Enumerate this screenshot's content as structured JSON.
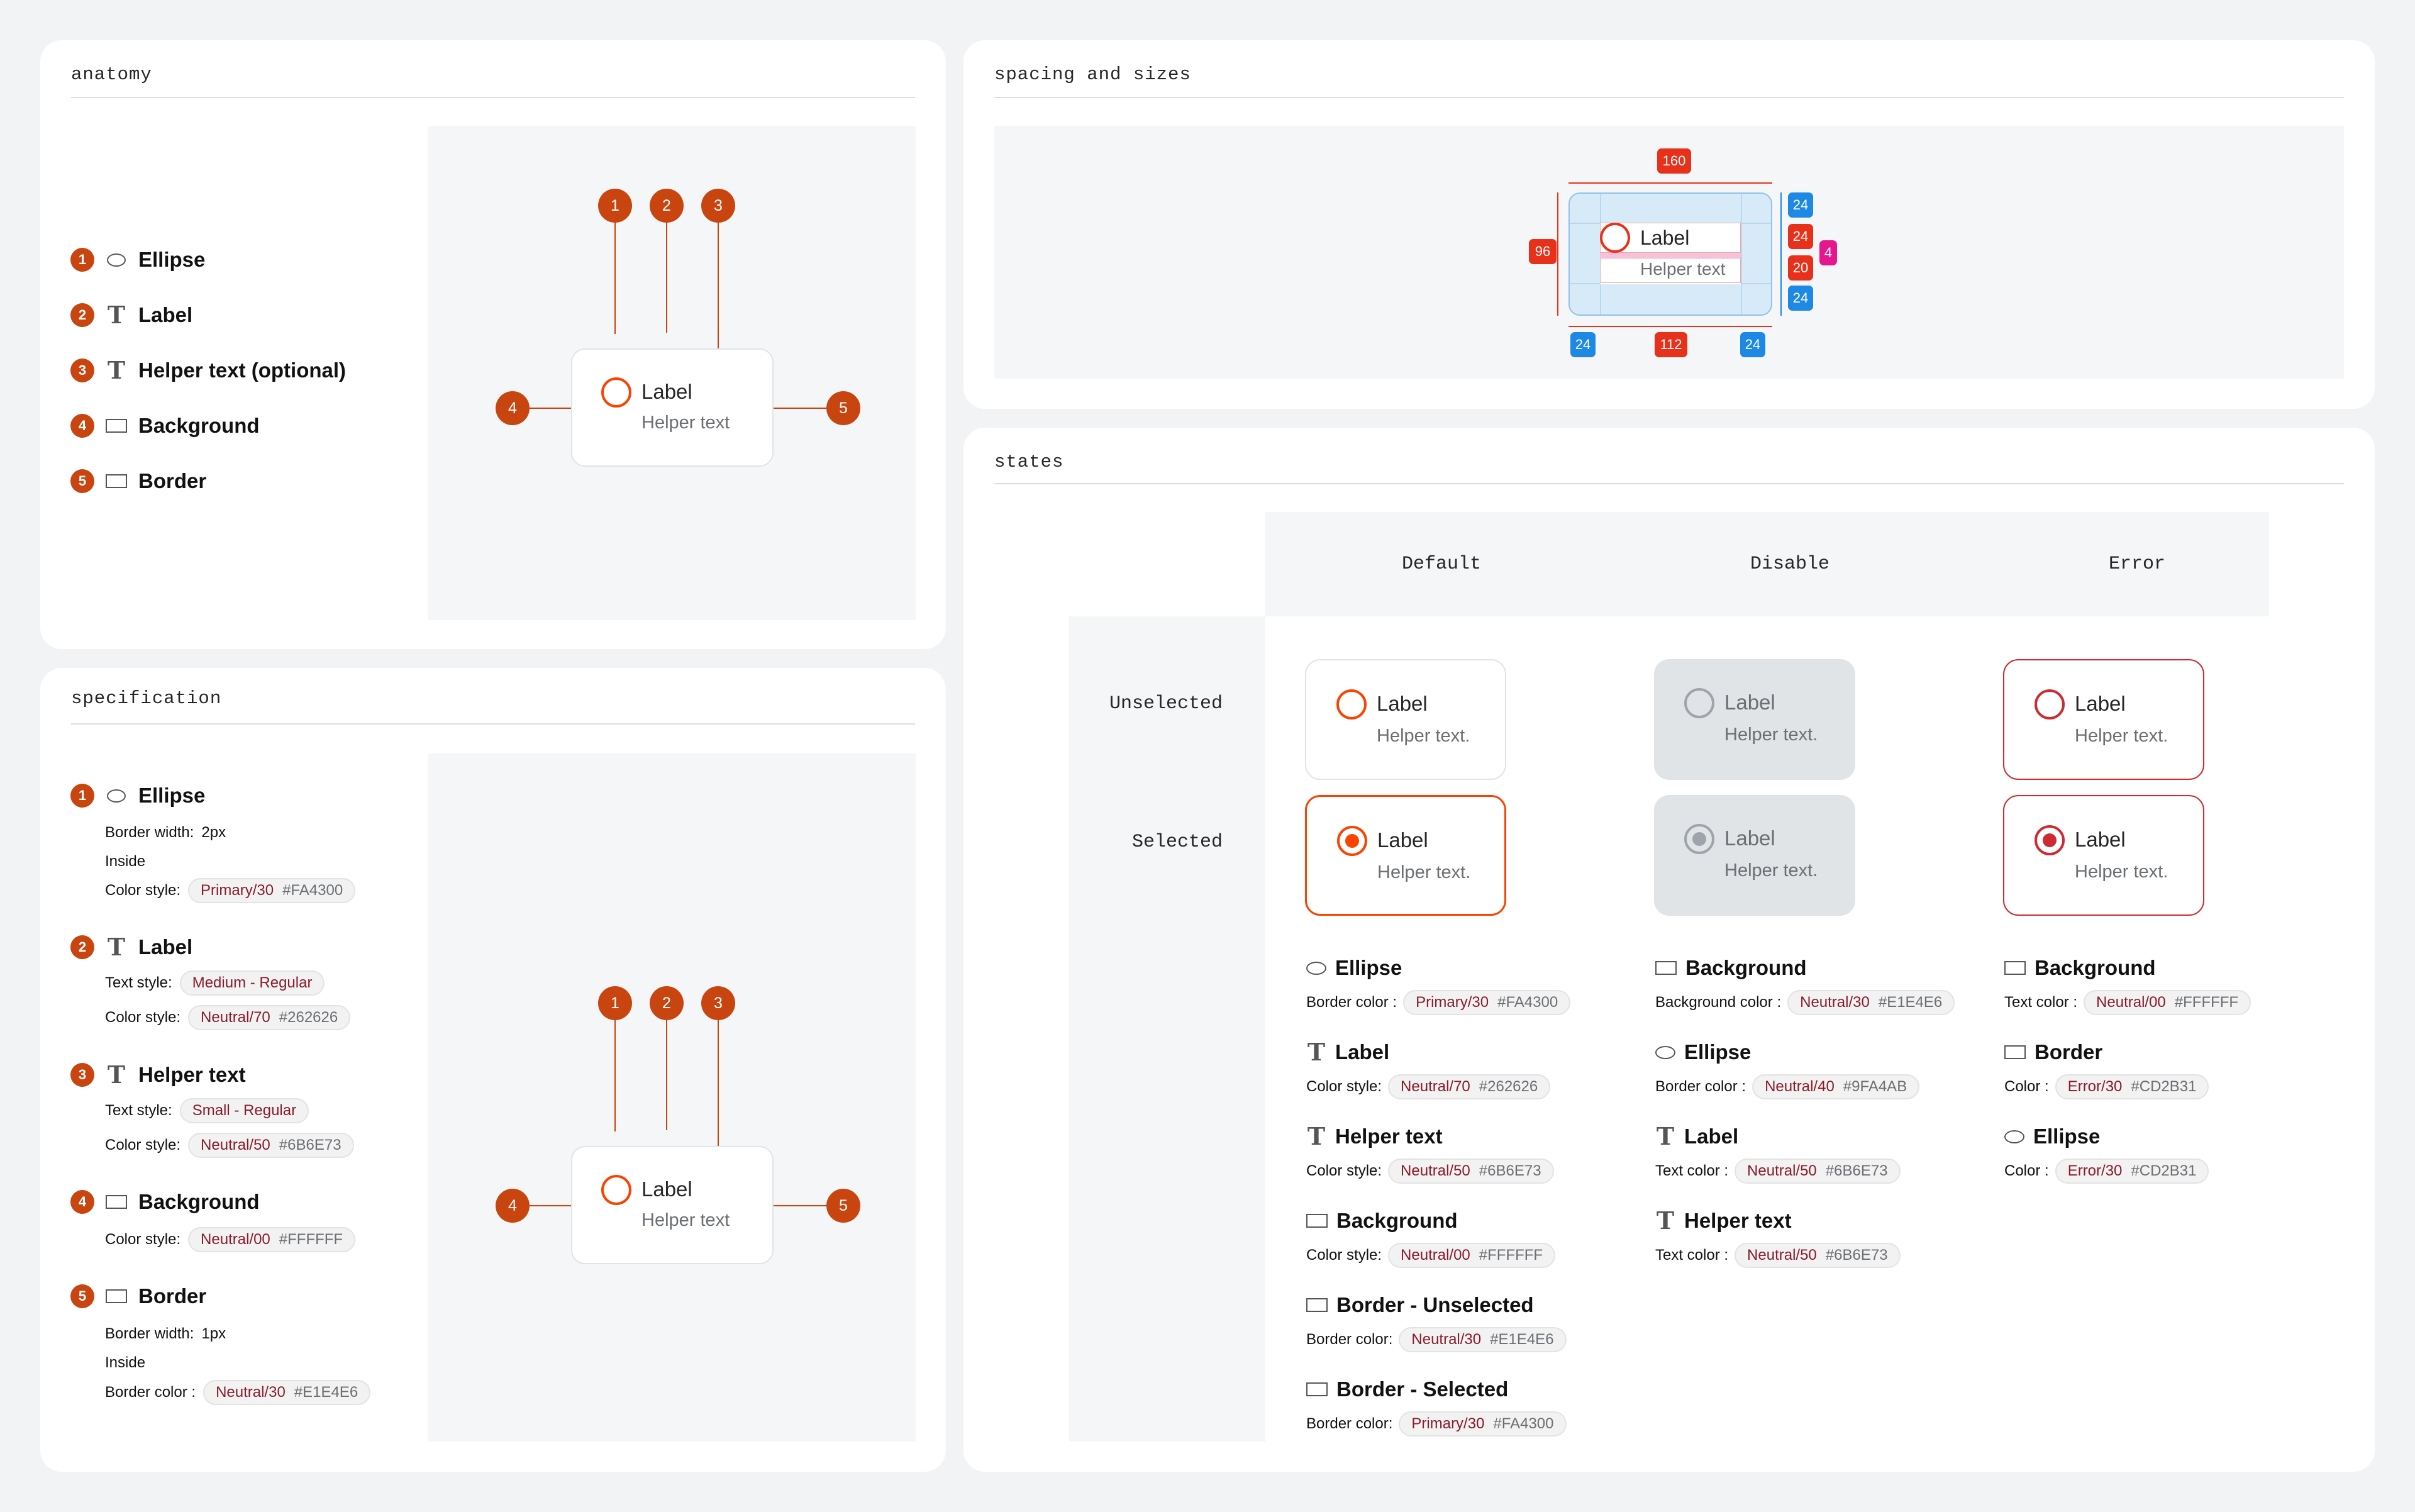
{
  "anatomy": {
    "title": "anatomy",
    "items": [
      {
        "num": "1",
        "icon": "ellipse-icon",
        "label": "Ellipse"
      },
      {
        "num": "2",
        "icon": "text-icon",
        "label": "Label"
      },
      {
        "num": "3",
        "icon": "text-icon",
        "label": "Helper text (optional)"
      },
      {
        "num": "4",
        "icon": "rectangle-icon",
        "label": "Background"
      },
      {
        "num": "5",
        "icon": "rectangle-icon",
        "label": "Border"
      }
    ],
    "preview": {
      "label": "Label",
      "helper": "Helper text",
      "markers": [
        "1",
        "2",
        "3",
        "4",
        "5"
      ]
    }
  },
  "spacing": {
    "title": "spacing and sizes",
    "measures": {
      "width": "160",
      "height": "96",
      "pad_top": "24",
      "label_h": "24",
      "gap": "4",
      "helper_h": "20",
      "pad_bottom": "24",
      "pad_left": "24",
      "content_w": "112",
      "pad_right": "24"
    },
    "preview": {
      "label": "Label",
      "helper": "Helper text"
    }
  },
  "specification": {
    "title": "specification",
    "items": [
      {
        "num": "1",
        "icon": "ellipse-icon",
        "title": "Ellipse",
        "lines": [
          {
            "k": "Border width:",
            "v": "2px"
          },
          {
            "k": "Inside",
            "v": ""
          }
        ],
        "chip": {
          "k": "Color style:",
          "token": "Primary/30",
          "hex": "#FA4300"
        }
      },
      {
        "num": "2",
        "icon": "text-icon",
        "title": "Label",
        "style_chip": {
          "k": "Text style:",
          "token": "Medium - Regular"
        },
        "chip": {
          "k": "Color style:",
          "token": "Neutral/70",
          "hex": "#262626"
        }
      },
      {
        "num": "3",
        "icon": "text-icon",
        "title": "Helper text",
        "style_chip": {
          "k": "Text style:",
          "token": "Small - Regular"
        },
        "chip": {
          "k": "Color style:",
          "token": "Neutral/50",
          "hex": "#6B6E73"
        }
      },
      {
        "num": "4",
        "icon": "rectangle-icon",
        "title": "Background",
        "chip": {
          "k": "Color style:",
          "token": "Neutral/00",
          "hex": "#FFFFFF"
        }
      },
      {
        "num": "5",
        "icon": "rectangle-icon",
        "title": "Border",
        "lines": [
          {
            "k": "Border width:",
            "v": "1px"
          },
          {
            "k": "Inside",
            "v": ""
          }
        ],
        "chip": {
          "k": "Border color :",
          "token": "Neutral/30",
          "hex": "#E1E4E6"
        }
      }
    ],
    "preview": {
      "label": "Label",
      "helper": "Helper text",
      "markers": [
        "1",
        "2",
        "3",
        "4",
        "5"
      ]
    }
  },
  "states": {
    "title": "states",
    "columns": [
      "Default",
      "Disable",
      "Error"
    ],
    "rows": [
      "Unselected",
      "Selected"
    ],
    "card_label": "Label",
    "card_helper": "Helper text.",
    "default_specs": [
      {
        "icon": "ellipse-icon",
        "title": "Ellipse",
        "k": "Border color :",
        "token": "Primary/30",
        "hex": "#FA4300"
      },
      {
        "icon": "text-icon",
        "title": "Label",
        "k": "Color style:",
        "token": "Neutral/70",
        "hex": "#262626"
      },
      {
        "icon": "text-icon",
        "title": "Helper text",
        "k": "Color style:",
        "token": "Neutral/50",
        "hex": "#6B6E73"
      },
      {
        "icon": "rectangle-icon",
        "title": "Background",
        "k": "Color style:",
        "token": "Neutral/00",
        "hex": "#FFFFFF"
      },
      {
        "icon": "rectangle-icon",
        "title": "Border - Unselected",
        "k": "Border color:",
        "token": "Neutral/30",
        "hex": "#E1E4E6"
      },
      {
        "icon": "rectangle-icon",
        "title": "Border - Selected",
        "k": "Border color:",
        "token": "Primary/30",
        "hex": "#FA4300"
      }
    ],
    "disable_specs": [
      {
        "icon": "rectangle-icon",
        "title": "Background",
        "k": "Background color :",
        "token": "Neutral/30",
        "hex": "#E1E4E6"
      },
      {
        "icon": "ellipse-icon",
        "title": "Ellipse",
        "k": "Border color :",
        "token": "Neutral/40",
        "hex": "#9FA4AB"
      },
      {
        "icon": "text-icon",
        "title": "Label",
        "k": "Text color :",
        "token": "Neutral/50",
        "hex": "#6B6E73"
      },
      {
        "icon": "text-icon",
        "title": "Helper text",
        "k": "Text color :",
        "token": "Neutral/50",
        "hex": "#6B6E73"
      }
    ],
    "error_specs": [
      {
        "icon": "rectangle-icon",
        "title": "Background",
        "k": "Text color :",
        "token": "Neutral/00",
        "hex": "#FFFFFF"
      },
      {
        "icon": "rectangle-icon",
        "title": "Border",
        "k": "Color :",
        "token": "Error/30",
        "hex": "#CD2B31"
      },
      {
        "icon": "ellipse-icon",
        "title": "Ellipse",
        "k": "Color :",
        "token": "Error/30",
        "hex": "#CD2B31"
      }
    ]
  },
  "colors": {
    "primary": "#FA4300",
    "badge": "#C84510",
    "error": "#CD2B31",
    "disabled_bg": "#E1E4E6",
    "disabled_ring": "#9FA4AB",
    "spacing_red": "#E8311A",
    "spacing_blue": "#1E88E5",
    "spacing_pink": "#E6178C"
  }
}
